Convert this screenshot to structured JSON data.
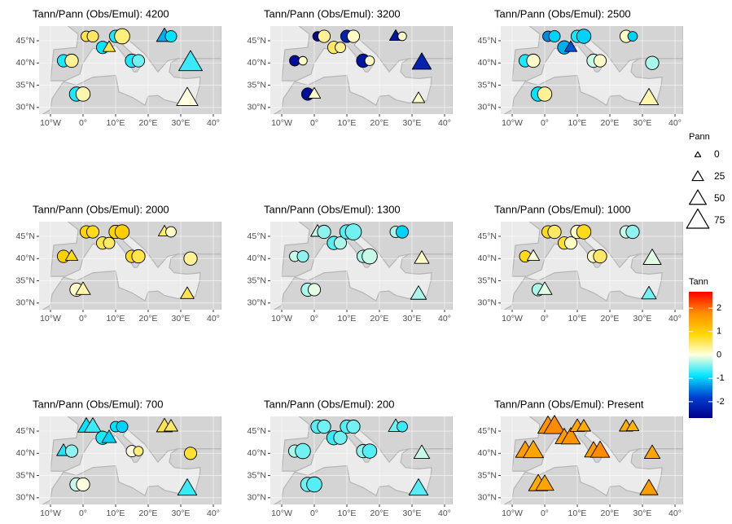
{
  "chart_data": [
    {
      "type": "map-scatter",
      "title": "Tann/Pann (Obs/Emul): 4200",
      "lon": [
        -6,
        -3.5,
        -2,
        0,
        1,
        3,
        6,
        8,
        10,
        12,
        15,
        17,
        25,
        27,
        33,
        32
      ],
      "lat": [
        40.5,
        40.5,
        33,
        33,
        46,
        46,
        43.5,
        43.5,
        46,
        46,
        40.5,
        40.5,
        46,
        46,
        40,
        32
      ],
      "shape": [
        "circle",
        "circle",
        "circle",
        "circle",
        "circle",
        "circle",
        "circle",
        "triangle",
        "circle",
        "circle",
        "circle",
        "circle",
        "triangle",
        "circle",
        "triangle",
        "triangle"
      ],
      "tann": [
        -0.8,
        0.3,
        -0.8,
        0.2,
        0.6,
        0.5,
        -0.9,
        0.6,
        -0.8,
        0.4,
        -0.8,
        -0.5,
        -1.2,
        -0.9,
        -0.7,
        0
      ],
      "pann": [
        40,
        45,
        50,
        50,
        30,
        35,
        40,
        30,
        40,
        55,
        45,
        40,
        45,
        35,
        80,
        70
      ]
    },
    {
      "type": "map-scatter",
      "title": "Tann/Pann (Obs/Emul): 3200",
      "lon": [
        -6,
        -3.5,
        -2,
        0,
        1,
        3,
        6,
        8,
        10,
        12,
        15,
        17,
        25,
        27,
        33,
        32
      ],
      "lat": [
        40.5,
        40.5,
        33,
        33,
        46,
        46,
        43.5,
        43.5,
        46,
        46,
        40.5,
        40.5,
        46,
        46,
        40,
        32
      ],
      "shape": [
        "circle",
        "circle",
        "circle",
        "triangle",
        "circle",
        "circle",
        "circle",
        "circle",
        "circle",
        "circle",
        "circle",
        "circle",
        "triangle",
        "circle",
        "triangle",
        "triangle"
      ],
      "tann": [
        -2.5,
        0.1,
        -2.5,
        0.1,
        -2.6,
        0.3,
        0.5,
        0.3,
        -2.2,
        0.1,
        -2.4,
        0.1,
        -2.4,
        0.1,
        -2.2,
        0.1
      ],
      "pann": [
        30,
        20,
        40,
        30,
        25,
        40,
        40,
        30,
        40,
        40,
        45,
        25,
        30,
        20,
        60,
        30
      ]
    },
    {
      "type": "map-scatter",
      "title": "Tann/Pann (Obs/Emul): 2500",
      "lon": [
        -6,
        -3.5,
        -2,
        0,
        1,
        3,
        6,
        8,
        10,
        12,
        15,
        17,
        25,
        27,
        33,
        32
      ],
      "lat": [
        40.5,
        40.5,
        33,
        33,
        46,
        46,
        43.5,
        43.5,
        46,
        46,
        40.5,
        40.5,
        46,
        46,
        40,
        32
      ],
      "shape": [
        "circle",
        "circle",
        "circle",
        "circle",
        "circle",
        "circle",
        "circle",
        "triangle",
        "circle",
        "circle",
        "circle",
        "circle",
        "circle",
        "circle",
        "circle",
        "triangle"
      ],
      "tann": [
        -0.8,
        0.1,
        -0.9,
        0.3,
        -1.4,
        -1.0,
        -1.2,
        -1.7,
        -0.8,
        -1.0,
        -0.2,
        0.1,
        0.1,
        -1.0,
        -0.3,
        0.2
      ],
      "pann": [
        40,
        45,
        50,
        50,
        30,
        35,
        45,
        30,
        40,
        50,
        45,
        40,
        40,
        25,
        45,
        60
      ]
    },
    {
      "type": "map-scatter",
      "title": "Tann/Pann (Obs/Emul): 2000",
      "lon": [
        -6,
        -3.5,
        -2,
        0,
        1,
        3,
        6,
        8,
        10,
        12,
        15,
        17,
        25,
        27,
        33,
        32
      ],
      "lat": [
        40.5,
        40.5,
        33,
        33,
        46,
        46,
        43.5,
        43.5,
        46,
        46,
        40.5,
        40.5,
        46,
        46,
        40,
        32
      ],
      "shape": [
        "circle",
        "triangle",
        "circle",
        "triangle",
        "circle",
        "circle",
        "circle",
        "circle",
        "circle",
        "circle",
        "circle",
        "circle",
        "triangle",
        "circle",
        "circle",
        "triangle"
      ],
      "tann": [
        1.0,
        0.8,
        0.1,
        0.2,
        0.9,
        0.8,
        0.6,
        0.5,
        0.9,
        1.0,
        0.8,
        0.6,
        0.5,
        0.1,
        0.3,
        0.6
      ],
      "pann": [
        40,
        30,
        45,
        40,
        40,
        40,
        40,
        35,
        45,
        50,
        40,
        45,
        30,
        30,
        45,
        35
      ]
    },
    {
      "type": "map-scatter",
      "title": "Tann/Pann (Obs/Emul): 1300",
      "lon": [
        -6,
        -3.5,
        -2,
        0,
        1,
        3,
        6,
        8,
        10,
        12,
        15,
        17,
        25,
        27,
        33,
        32
      ],
      "lat": [
        40.5,
        40.5,
        33,
        33,
        46,
        46,
        43.5,
        43.5,
        46,
        46,
        40.5,
        40.5,
        46,
        46,
        40,
        32
      ],
      "shape": [
        "circle",
        "circle",
        "circle",
        "circle",
        "triangle",
        "circle",
        "circle",
        "circle",
        "circle",
        "circle",
        "circle",
        "circle",
        "circle",
        "circle",
        "triangle",
        "triangle"
      ],
      "tann": [
        -0.2,
        -0.4,
        -0.3,
        -0.1,
        -0.2,
        -0.4,
        -0.6,
        -0.3,
        -0.6,
        -0.5,
        -0.3,
        -0.2,
        -0.3,
        -1.0,
        0.1,
        -0.3
      ],
      "pann": [
        30,
        35,
        45,
        40,
        35,
        45,
        45,
        40,
        50,
        60,
        40,
        55,
        35,
        40,
        40,
        45
      ]
    },
    {
      "type": "map-scatter",
      "title": "Tann/Pann (Obs/Emul): 1000",
      "lon": [
        -6,
        -3.5,
        -2,
        0,
        1,
        3,
        6,
        8,
        10,
        12,
        15,
        17,
        25,
        27,
        33,
        32
      ],
      "lat": [
        40.5,
        40.5,
        33,
        33,
        46,
        46,
        43.5,
        43.5,
        46,
        46,
        40.5,
        40.5,
        46,
        46,
        40,
        32
      ],
      "shape": [
        "circle",
        "triangle",
        "circle",
        "triangle",
        "circle",
        "circle",
        "circle",
        "circle",
        "circle",
        "circle",
        "circle",
        "circle",
        "circle",
        "circle",
        "triangle",
        "triangle"
      ],
      "tann": [
        0.8,
        0,
        -0.3,
        -0.1,
        0.8,
        0.5,
        0.7,
        0.1,
        0.1,
        0.8,
        0.1,
        0.5,
        -0.2,
        -0.4,
        -0.1,
        -0.5
      ],
      "pann": [
        35,
        30,
        40,
        40,
        40,
        45,
        40,
        40,
        45,
        50,
        40,
        45,
        40,
        45,
        55,
        40
      ]
    },
    {
      "type": "map-scatter",
      "title": "Tann/Pann (Obs/Emul): 700",
      "lon": [
        -6,
        -3.5,
        -2,
        0,
        1,
        3,
        6,
        8,
        10,
        12,
        15,
        17,
        25,
        27,
        33,
        32
      ],
      "lat": [
        40.5,
        40.5,
        33,
        33,
        46,
        46,
        43.5,
        43.5,
        46,
        46,
        40.5,
        40.5,
        46,
        46,
        40,
        32
      ],
      "shape": [
        "triangle",
        "circle",
        "circle",
        "circle",
        "triangle",
        "triangle",
        "circle",
        "triangle",
        "circle",
        "circle",
        "circle",
        "circle",
        "triangle",
        "triangle",
        "circle",
        "triangle"
      ],
      "tann": [
        -0.8,
        -0.4,
        -0.2,
        0,
        -0.9,
        -0.7,
        -0.8,
        -1.0,
        -0.9,
        -1.0,
        0,
        0.4,
        0.6,
        0.5,
        0.7,
        -0.7
      ],
      "pann": [
        35,
        40,
        45,
        45,
        50,
        50,
        45,
        40,
        30,
        35,
        35,
        25,
        45,
        35,
        40,
        60
      ]
    },
    {
      "type": "map-scatter",
      "title": "Tann/Pann (Obs/Emul): 200",
      "lon": [
        -6,
        -3.5,
        -2,
        0,
        1,
        3,
        6,
        8,
        10,
        12,
        15,
        17,
        25,
        27,
        33,
        32
      ],
      "lat": [
        40.5,
        40.5,
        33,
        33,
        46,
        46,
        43.5,
        43.5,
        46,
        46,
        40.5,
        40.5,
        46,
        46,
        40,
        32
      ],
      "shape": [
        "circle",
        "circle",
        "circle",
        "circle",
        "circle",
        "circle",
        "circle",
        "circle",
        "circle",
        "circle",
        "circle",
        "circle",
        "triangle",
        "circle",
        "triangle",
        "triangle"
      ],
      "tann": [
        -0.3,
        -0.5,
        -0.5,
        -0.6,
        -0.6,
        -0.5,
        -0.7,
        -0.5,
        -0.6,
        -0.5,
        -0.4,
        -0.6,
        -0.5,
        -0.7,
        -0.2,
        -0.6
      ],
      "pann": [
        40,
        55,
        50,
        55,
        45,
        45,
        50,
        45,
        45,
        45,
        45,
        50,
        40,
        30,
        45,
        60
      ]
    },
    {
      "type": "map-scatter",
      "title": "Tann/Pann (Obs/Emul): Present",
      "lon": [
        -6,
        -3.5,
        -2,
        0,
        1,
        3,
        6,
        8,
        10,
        12,
        15,
        17,
        25,
        27,
        33,
        32
      ],
      "lat": [
        40.5,
        40.5,
        33,
        33,
        46,
        46,
        43.5,
        43.5,
        46,
        46,
        40.5,
        40.5,
        46,
        46,
        40,
        32
      ],
      "shape": [
        "triangle",
        "triangle",
        "triangle",
        "triangle",
        "triangle",
        "triangle",
        "triangle",
        "triangle",
        "triangle",
        "triangle",
        "triangle",
        "triangle",
        "triangle",
        "triangle",
        "triangle",
        "triangle"
      ],
      "tann": [
        1.6,
        1.5,
        1.4,
        1.5,
        1.7,
        1.8,
        1.6,
        1.7,
        1.5,
        1.4,
        1.6,
        1.8,
        1.4,
        1.3,
        1.5,
        1.6
      ],
      "pann": [
        60,
        65,
        60,
        55,
        65,
        70,
        55,
        60,
        40,
        35,
        55,
        60,
        35,
        30,
        45,
        55
      ]
    }
  ],
  "axes": {
    "xlim": [
      -13.5,
      42.5
    ],
    "ylim": [
      28.5,
      48.3
    ],
    "xticks": [
      {
        "value": -10,
        "label": "10°W"
      },
      {
        "value": 0,
        "label": "0°"
      },
      {
        "value": 10,
        "label": "10°E"
      },
      {
        "value": 20,
        "label": "20°E"
      },
      {
        "value": 30,
        "label": "30°E"
      },
      {
        "value": 40,
        "label": "40°"
      }
    ],
    "yticks": [
      {
        "value": 30,
        "label": "30°N"
      },
      {
        "value": 35,
        "label": "35°N"
      },
      {
        "value": 40,
        "label": "40°N"
      },
      {
        "value": 45,
        "label": "45°N"
      }
    ],
    "grid": true
  },
  "legend": {
    "size_title": "Pann",
    "size_ticks": [
      0,
      25,
      50,
      75
    ],
    "color_title": "Tann",
    "color_lim": [
      -2.7,
      2.7
    ],
    "color_ticks": [
      2,
      1,
      0,
      -1,
      -2
    ],
    "colors": [
      "#00008b",
      "#0040d0",
      "#00e5ff",
      "#ffffe0",
      "#ffd700",
      "#ff8c00",
      "#ff0000"
    ]
  }
}
